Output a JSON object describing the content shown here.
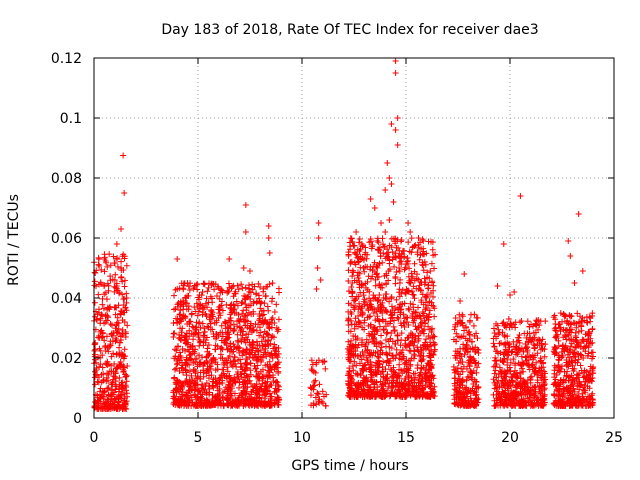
{
  "chart_data": {
    "type": "scatter",
    "title": "Day 183 of 2018, Rate Of TEC Index for receiver dae3",
    "xlabel": "GPS time / hours",
    "ylabel": "ROTI / TECUs",
    "xlim": [
      0,
      25
    ],
    "ylim": [
      0,
      0.12
    ],
    "xticks": [
      0,
      5,
      10,
      15,
      20,
      25
    ],
    "xtick_labels": [
      "0",
      "5",
      "10",
      "15",
      "20",
      "25"
    ],
    "yticks": [
      0,
      0.02,
      0.04,
      0.06,
      0.08,
      0.1,
      0.12
    ],
    "ytick_labels": [
      "0",
      "0.02",
      "0.04",
      "0.06",
      "0.08",
      "0.1",
      "0.12"
    ],
    "grid": true,
    "marker": "+",
    "color": "#ff0000",
    "series": [
      {
        "name": "dae3",
        "clusters": [
          {
            "x_start": 0.0,
            "x_end": 1.6,
            "y_min": 0.003,
            "y_max": 0.055,
            "count": 420
          },
          {
            "x_start": 3.8,
            "x_end": 8.9,
            "y_min": 0.004,
            "y_max": 0.045,
            "count": 1300
          },
          {
            "x_start": 10.4,
            "x_end": 11.2,
            "y_min": 0.004,
            "y_max": 0.02,
            "count": 40
          },
          {
            "x_start": 12.2,
            "x_end": 16.4,
            "y_min": 0.007,
            "y_max": 0.06,
            "count": 1250
          },
          {
            "x_start": 17.3,
            "x_end": 18.5,
            "y_min": 0.004,
            "y_max": 0.035,
            "count": 260
          },
          {
            "x_start": 19.2,
            "x_end": 21.7,
            "y_min": 0.004,
            "y_max": 0.033,
            "count": 550
          },
          {
            "x_start": 22.1,
            "x_end": 24.0,
            "y_min": 0.004,
            "y_max": 0.035,
            "count": 450
          }
        ],
        "outliers": [
          {
            "x": 1.4,
            "y": 0.0875
          },
          {
            "x": 1.45,
            "y": 0.075
          },
          {
            "x": 1.3,
            "y": 0.063
          },
          {
            "x": 0.5,
            "y": 0.053
          },
          {
            "x": 1.1,
            "y": 0.058
          },
          {
            "x": 4.0,
            "y": 0.053
          },
          {
            "x": 4.0,
            "y": 0.043
          },
          {
            "x": 4.5,
            "y": 0.045
          },
          {
            "x": 7.3,
            "y": 0.071
          },
          {
            "x": 7.3,
            "y": 0.062
          },
          {
            "x": 7.2,
            "y": 0.05
          },
          {
            "x": 7.5,
            "y": 0.049
          },
          {
            "x": 8.4,
            "y": 0.064
          },
          {
            "x": 8.4,
            "y": 0.06
          },
          {
            "x": 8.45,
            "y": 0.055
          },
          {
            "x": 6.5,
            "y": 0.053
          },
          {
            "x": 10.8,
            "y": 0.065
          },
          {
            "x": 10.8,
            "y": 0.06
          },
          {
            "x": 10.75,
            "y": 0.05
          },
          {
            "x": 10.7,
            "y": 0.043
          },
          {
            "x": 10.9,
            "y": 0.046
          },
          {
            "x": 14.5,
            "y": 0.119
          },
          {
            "x": 14.5,
            "y": 0.115
          },
          {
            "x": 14.6,
            "y": 0.1
          },
          {
            "x": 14.5,
            "y": 0.096
          },
          {
            "x": 14.3,
            "y": 0.098
          },
          {
            "x": 14.6,
            "y": 0.091
          },
          {
            "x": 14.1,
            "y": 0.085
          },
          {
            "x": 14.2,
            "y": 0.08
          },
          {
            "x": 14.3,
            "y": 0.078
          },
          {
            "x": 14.0,
            "y": 0.076
          },
          {
            "x": 14.4,
            "y": 0.072
          },
          {
            "x": 13.3,
            "y": 0.073
          },
          {
            "x": 13.5,
            "y": 0.07
          },
          {
            "x": 14.2,
            "y": 0.066
          },
          {
            "x": 13.8,
            "y": 0.065
          },
          {
            "x": 12.6,
            "y": 0.062
          },
          {
            "x": 14.0,
            "y": 0.062
          },
          {
            "x": 15.1,
            "y": 0.065
          },
          {
            "x": 15.2,
            "y": 0.062
          },
          {
            "x": 15.6,
            "y": 0.06
          },
          {
            "x": 17.8,
            "y": 0.048
          },
          {
            "x": 17.6,
            "y": 0.039
          },
          {
            "x": 19.7,
            "y": 0.058
          },
          {
            "x": 20.2,
            "y": 0.042
          },
          {
            "x": 20.5,
            "y": 0.074
          },
          {
            "x": 19.4,
            "y": 0.044
          },
          {
            "x": 20.0,
            "y": 0.041
          },
          {
            "x": 23.3,
            "y": 0.068
          },
          {
            "x": 22.8,
            "y": 0.059
          },
          {
            "x": 22.9,
            "y": 0.054
          },
          {
            "x": 23.5,
            "y": 0.049
          },
          {
            "x": 23.1,
            "y": 0.045
          }
        ]
      }
    ]
  }
}
